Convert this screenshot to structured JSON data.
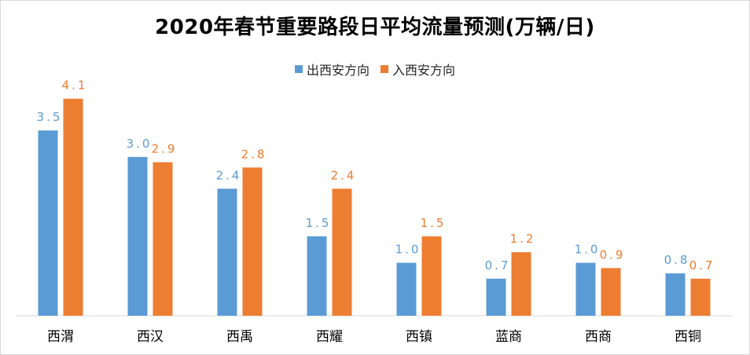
{
  "colors": {
    "outbound": "#5b9bd5",
    "inbound": "#ed7d31",
    "axis": "#d9d9d9"
  },
  "chart_data": {
    "type": "bar",
    "title": "2020年春节重要路段日平均流量预测(万辆/日)",
    "categories": [
      "西渭",
      "西汉",
      "西禹",
      "西耀",
      "西镇",
      "蓝商",
      "西商",
      "西铜"
    ],
    "series": [
      {
        "name": "出西安方向",
        "values": [
          3.5,
          3.0,
          2.4,
          1.5,
          1.0,
          0.7,
          1.0,
          0.8
        ]
      },
      {
        "name": "入西安方向",
        "values": [
          4.1,
          2.9,
          2.8,
          2.4,
          1.5,
          1.2,
          0.9,
          0.7
        ]
      }
    ],
    "ylim": [
      0,
      4.6
    ],
    "legend_position": "top-center",
    "grid": false,
    "xlabel": "",
    "ylabel": ""
  }
}
